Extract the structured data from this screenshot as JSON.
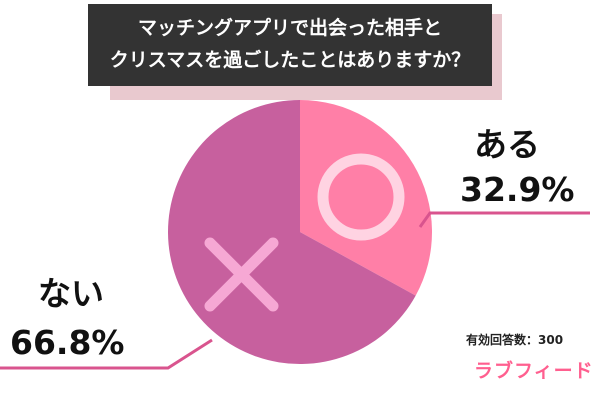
{
  "title": {
    "line1": "マッチングアプリで出会った相手と",
    "line2": "クリスマスを過ごしたことはありますか？"
  },
  "response_count": "有効回答数：300",
  "brand": "ラブフィード",
  "colors": {
    "yes": "#ff7fa7",
    "no": "#c7609e",
    "yes_symbol": "#ffd3e2",
    "no_symbol": "#f6a8d4",
    "leader_line": "#d9548e",
    "title_bg": "#333333",
    "title_shadow": "#e9c9cf"
  },
  "chart_data": {
    "type": "pie",
    "title": "マッチングアプリで出会った相手とクリスマスを過ごしたことはありますか？",
    "start_angle_deg": 0,
    "direction": "clockwise",
    "slices": [
      {
        "label": "ある",
        "value": 32.9,
        "value_label": "32.9%",
        "symbol": "○",
        "symbol_icon": "circle-icon"
      },
      {
        "label": "ない",
        "value": 66.8,
        "value_label": "66.8%",
        "symbol": "×",
        "symbol_icon": "cross-icon"
      }
    ]
  }
}
